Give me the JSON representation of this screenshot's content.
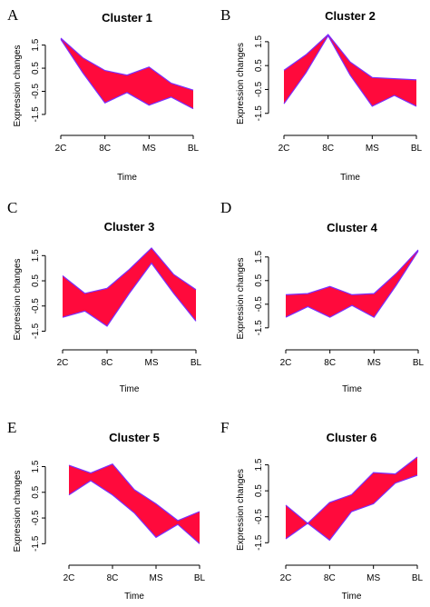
{
  "colors": {
    "band_fill": "#ff0a3c",
    "band_edge": "#7a2cff"
  },
  "chart_data": [
    {
      "panel": "A",
      "type": "area",
      "title": "Cluster 1",
      "xlabel": "Time",
      "ylabel": "Expression changes",
      "categories": [
        "2C",
        "8C",
        "MS",
        "BL"
      ],
      "x_ticks": [
        1,
        3,
        5,
        7
      ],
      "yticks": [
        1.5,
        0.5,
        -0.5,
        -1.5
      ],
      "ylim": [
        -1.7,
        1.8
      ],
      "band_x": [
        1,
        2,
        3,
        4,
        5,
        6,
        7
      ],
      "band_upper": [
        1.8,
        0.95,
        0.4,
        0.2,
        0.55,
        -0.15,
        -0.45
      ],
      "band_lower": [
        1.75,
        0.3,
        -1.0,
        -0.55,
        -1.1,
        -0.75,
        -1.25
      ]
    },
    {
      "panel": "B",
      "type": "area",
      "title": "Cluster 2",
      "xlabel": "Time",
      "ylabel": "Expression changes",
      "categories": [
        "2C",
        "8C",
        "MS",
        "BL"
      ],
      "x_ticks": [
        1,
        3,
        5,
        7
      ],
      "yticks": [
        1.5,
        0.5,
        -0.5,
        -1.5
      ],
      "ylim": [
        -1.7,
        1.8
      ],
      "band_x": [
        1,
        2,
        3,
        4,
        5,
        6,
        7
      ],
      "band_upper": [
        0.3,
        0.95,
        1.8,
        0.65,
        0.0,
        -0.05,
        -0.1
      ],
      "band_lower": [
        -1.1,
        0.2,
        1.75,
        0.1,
        -1.2,
        -0.75,
        -1.2
      ]
    },
    {
      "panel": "C",
      "type": "area",
      "title": "Cluster 3",
      "xlabel": "Time",
      "ylabel": "Expression changes",
      "categories": [
        "2C",
        "8C",
        "MS",
        "BL"
      ],
      "x_ticks": [
        1,
        3,
        5,
        7
      ],
      "yticks": [
        1.5,
        0.5,
        -0.5,
        -1.5
      ],
      "ylim": [
        -1.7,
        1.8
      ],
      "band_x": [
        1,
        2,
        3,
        4,
        5,
        6,
        7
      ],
      "band_upper": [
        0.7,
        0.0,
        0.2,
        0.95,
        1.8,
        0.75,
        0.15
      ],
      "band_lower": [
        -0.95,
        -0.7,
        -1.3,
        0.0,
        1.2,
        0.0,
        -1.1
      ]
    },
    {
      "panel": "D",
      "type": "area",
      "title": "Cluster 4",
      "xlabel": "Time",
      "ylabel": "Expression changes",
      "categories": [
        "2C",
        "8C",
        "MS",
        "BL"
      ],
      "x_ticks": [
        1,
        3,
        5,
        7
      ],
      "yticks": [
        1.5,
        0.5,
        -0.5,
        -1.5
      ],
      "ylim": [
        -1.7,
        1.8
      ],
      "band_x": [
        1,
        2,
        3,
        4,
        5,
        6,
        7
      ],
      "band_upper": [
        -0.1,
        -0.05,
        0.25,
        -0.1,
        -0.05,
        0.8,
        1.8
      ],
      "band_lower": [
        -1.05,
        -0.6,
        -1.05,
        -0.55,
        -1.05,
        0.3,
        1.75
      ]
    },
    {
      "panel": "E",
      "type": "area",
      "title": "Cluster 5",
      "xlabel": "Time",
      "ylabel": "Expression changes",
      "categories": [
        "2C",
        "8C",
        "MS",
        "BL"
      ],
      "x_ticks": [
        1,
        3,
        5,
        7
      ],
      "yticks": [
        1.5,
        0.5,
        -0.5,
        -1.5
      ],
      "ylim": [
        -1.7,
        1.8
      ],
      "band_x": [
        1,
        2,
        3,
        4,
        5,
        6,
        7
      ],
      "band_upper": [
        1.55,
        1.25,
        1.6,
        0.6,
        0.05,
        -0.6,
        -0.25
      ],
      "band_lower": [
        0.4,
        0.95,
        0.4,
        -0.3,
        -1.25,
        -0.75,
        -1.5
      ]
    },
    {
      "panel": "F",
      "type": "area",
      "title": "Cluster 6",
      "xlabel": "Time",
      "ylabel": "Expression changes",
      "categories": [
        "2C",
        "8C",
        "MS",
        "BL"
      ],
      "x_ticks": [
        1,
        3,
        5,
        7
      ],
      "yticks": [
        1.5,
        0.5,
        -0.5,
        -1.5
      ],
      "ylim": [
        -1.7,
        1.8
      ],
      "band_x": [
        1,
        2,
        3,
        4,
        5,
        6,
        7
      ],
      "band_upper": [
        -0.05,
        -0.75,
        0.05,
        0.35,
        1.2,
        1.15,
        1.8
      ],
      "band_lower": [
        -1.35,
        -0.75,
        -1.4,
        -0.3,
        0.0,
        0.8,
        1.1
      ]
    }
  ]
}
